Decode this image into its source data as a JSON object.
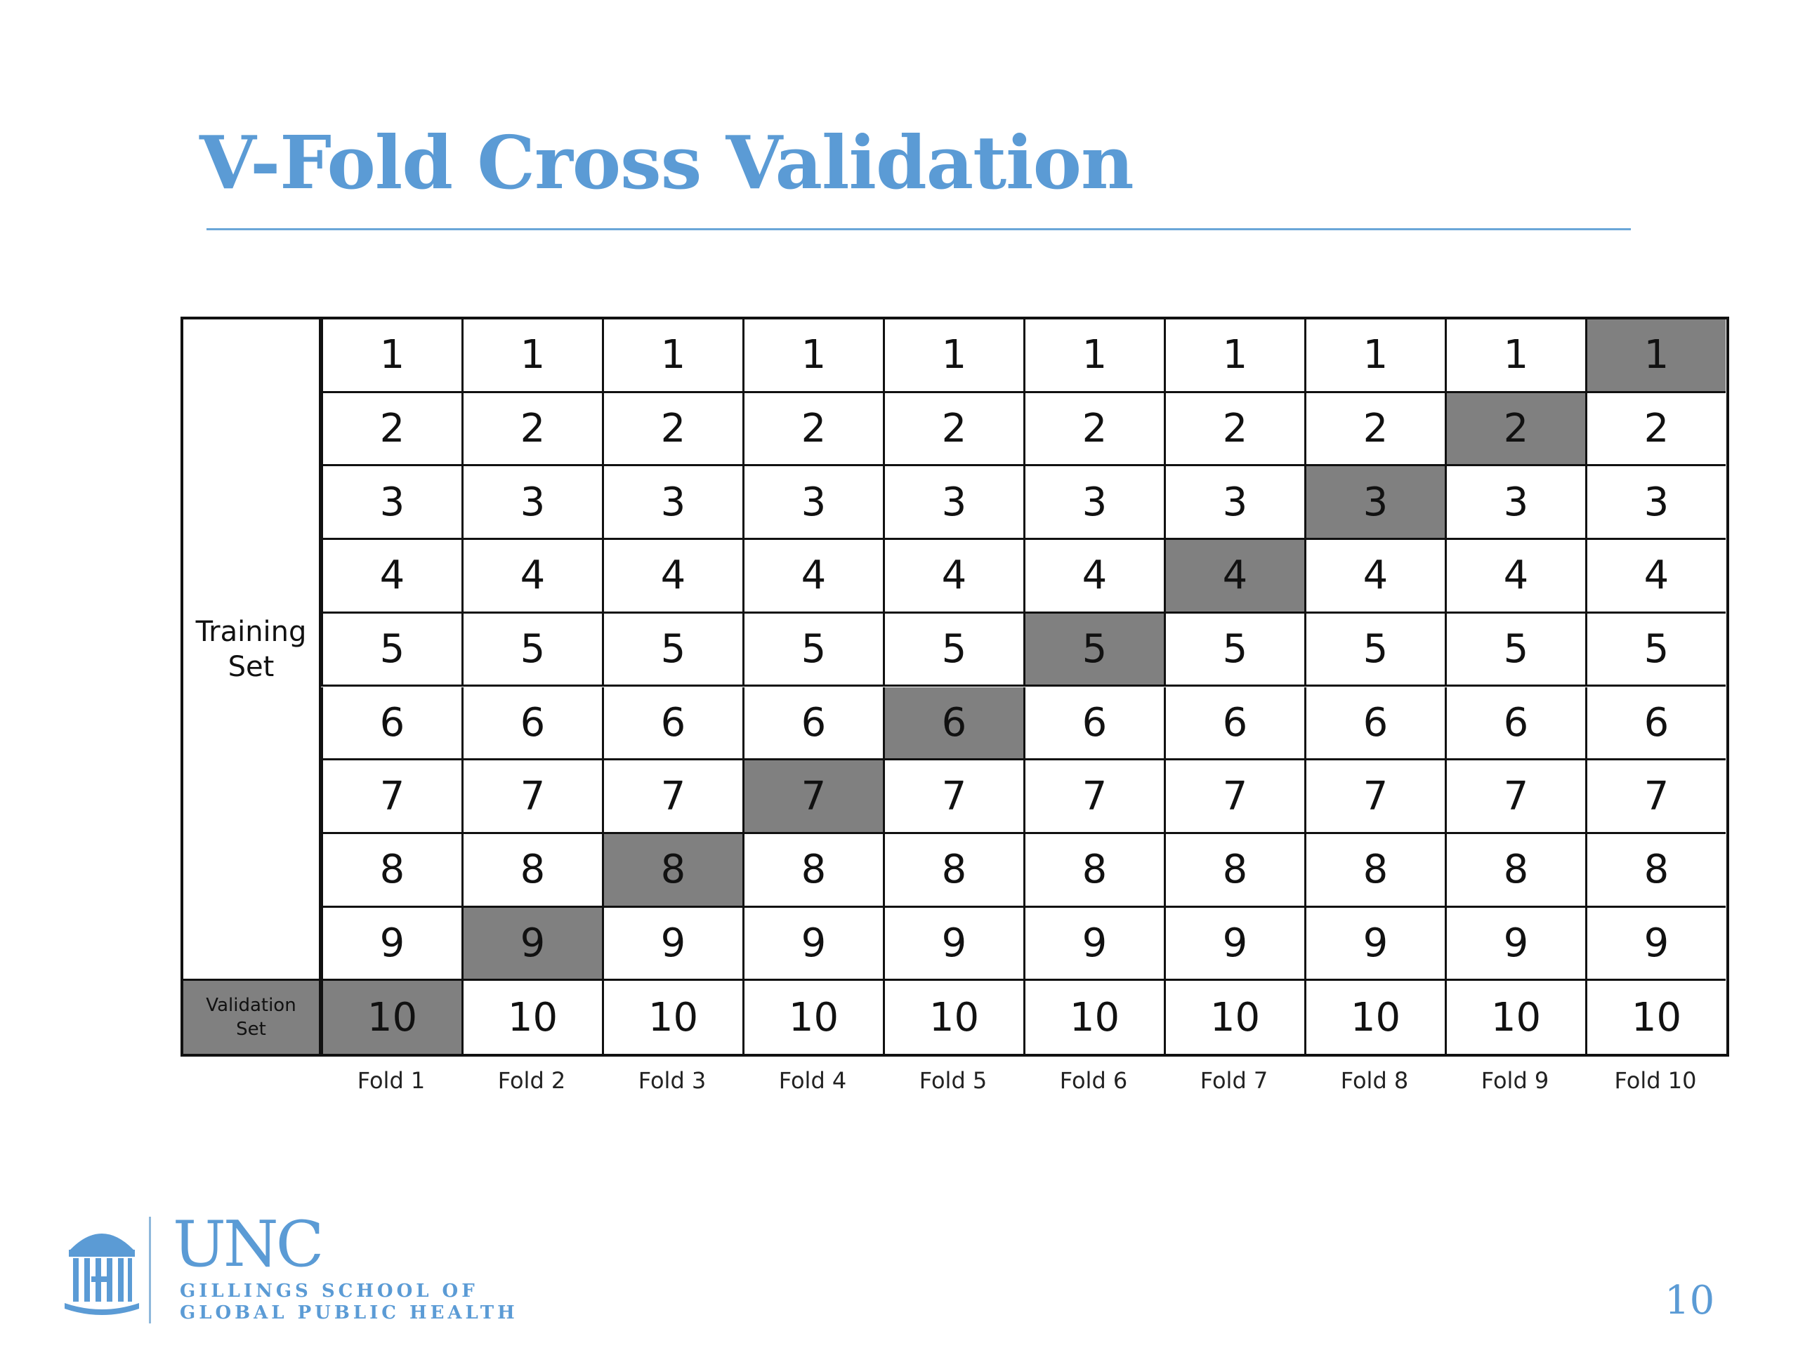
{
  "slide": {
    "title": "V-Fold Cross Validation",
    "page_number": "10"
  },
  "diagram": {
    "row_labels": {
      "training": [
        "Training",
        "Set"
      ],
      "validation": [
        "Validation",
        "Set"
      ]
    },
    "row_values": [
      "1",
      "2",
      "3",
      "4",
      "5",
      "6",
      "7",
      "8",
      "9",
      "10"
    ],
    "folds": [
      "Fold 1",
      "Fold 2",
      "Fold 3",
      "Fold 4",
      "Fold 5",
      "Fold 6",
      "Fold 7",
      "Fold 8",
      "Fold 9",
      "Fold 10"
    ],
    "validation_row_by_fold": [
      10,
      9,
      8,
      7,
      6,
      5,
      4,
      3,
      2,
      1
    ],
    "shade_color": "#808080"
  },
  "logo": {
    "name": "UNC",
    "subtitle_lines": [
      "GILLINGS SCHOOL OF",
      "GLOBAL PUBLIC HEALTH"
    ],
    "icon": "old-well-icon",
    "color": "#5b9bd5"
  }
}
